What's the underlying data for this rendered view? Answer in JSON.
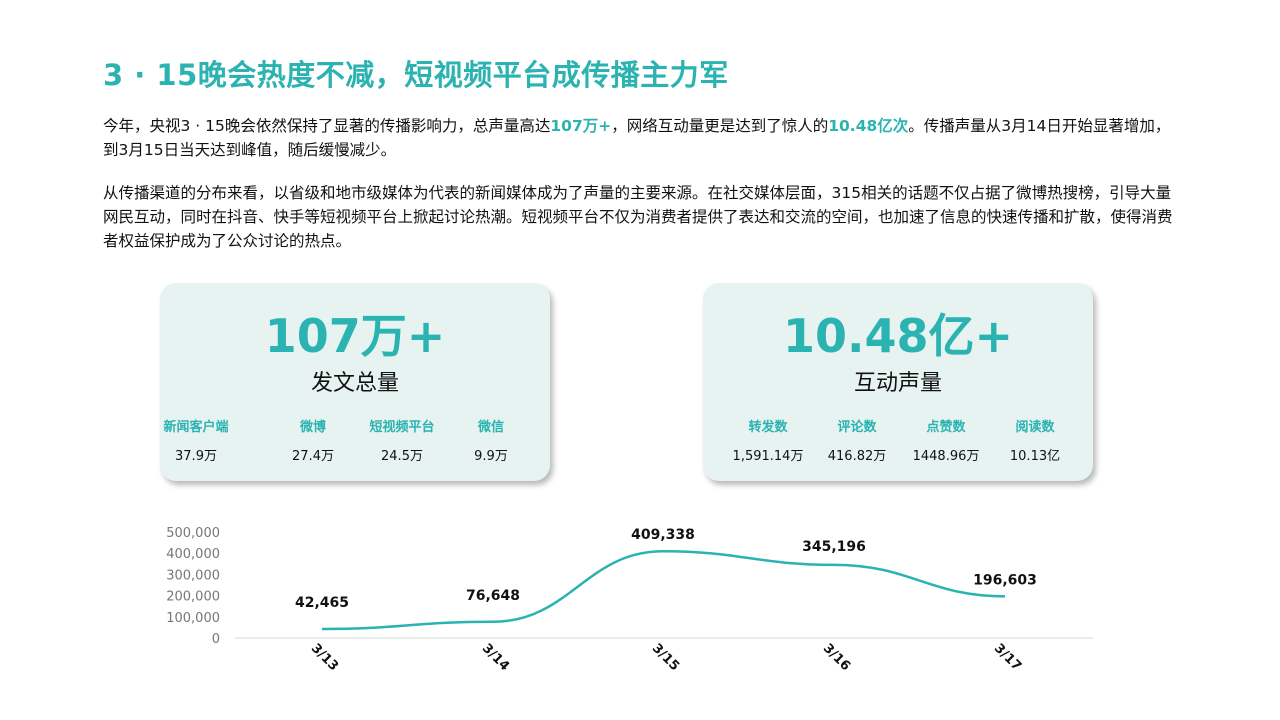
{
  "title": "3 · 15晚会热度不减，短视频平台成传播主力军",
  "paragraph1": {
    "t1": "今年，央视3 · 15晚会依然保持了显著的传播影响力，总声量高达",
    "h1": "107万+",
    "t2": "，网络互动量更是达到了惊人的",
    "h2": "10.48亿次",
    "t3": "。传播声量从3月14日开始显著增加，到3月15日当天达到峰值，随后缓慢减少。"
  },
  "paragraph2": "从传播渠道的分布来看，以省级和地市级媒体为代表的新闻媒体成为了声量的主要来源。在社交媒体层面，315相关的话题不仅占据了微博热搜榜，引导大量网民互动，同时在抖音、快手等短视频平台上掀起讨论热潮。短视频平台不仅为消费者提供了表达和交流的空间，也加速了信息的快速传播和扩散，使得消费者权益保护成为了公众讨论的热点。",
  "cards": [
    {
      "big": "107万+",
      "sub": "发文总量",
      "stats": [
        {
          "label": "新闻客户端",
          "value": "37.9万"
        },
        {
          "label": "微博",
          "value": "27.4万"
        },
        {
          "label": "短视频平台",
          "value": "24.5万"
        },
        {
          "label": "微信",
          "value": "9.9万"
        }
      ]
    },
    {
      "big": "10.48亿+",
      "sub": "互动声量",
      "stats": [
        {
          "label": "转发数",
          "value": "1,591.14万"
        },
        {
          "label": "评论数",
          "value": "416.82万"
        },
        {
          "label": "点赞数",
          "value": "1448.96万"
        },
        {
          "label": "阅读数",
          "value": "10.13亿"
        }
      ]
    }
  ],
  "chart_data": {
    "type": "line",
    "categories": [
      "3/13",
      "3/14",
      "3/15",
      "3/16",
      "3/17"
    ],
    "values": [
      42465,
      76648,
      409338,
      345196,
      196603
    ],
    "value_labels": [
      "42,465",
      "76,648",
      "409,338",
      "345,196",
      "196,603"
    ],
    "y_ticks": [
      "0",
      "100,000",
      "200,000",
      "300,000",
      "400,000",
      "500,000"
    ],
    "ylim": [
      0,
      500000
    ],
    "smooth": true,
    "line_color": "#2bb3b1",
    "grid": false
  }
}
